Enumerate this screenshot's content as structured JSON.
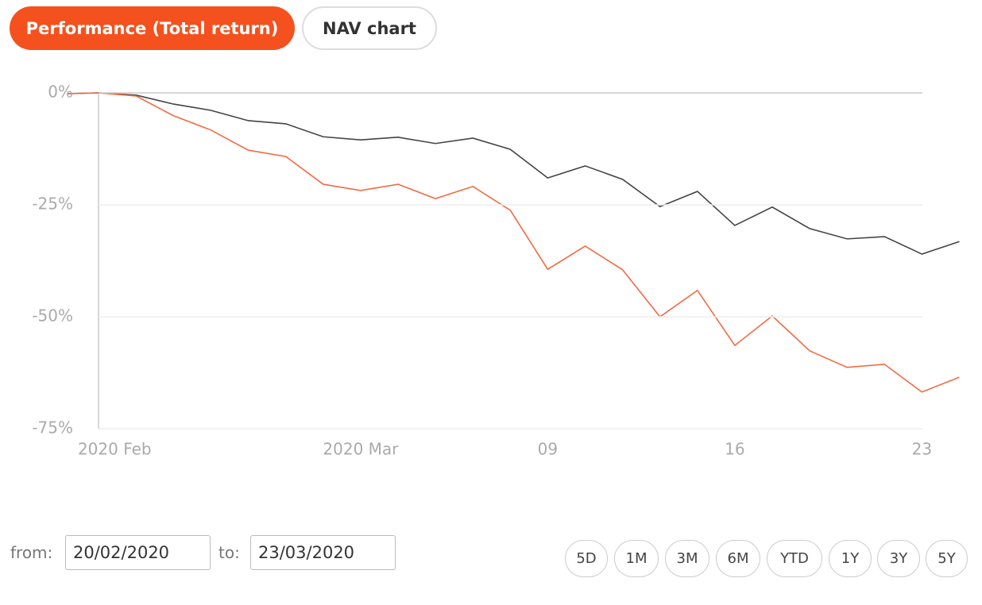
{
  "tabs": [
    "Performance (Total return)",
    "NAV chart"
  ],
  "chart_data": {
    "type": "line",
    "categories": [
      null,
      null,
      "2020 Feb",
      null,
      null,
      null,
      null,
      null,
      "2020 Mar",
      null,
      null,
      null,
      null,
      "09",
      null,
      null,
      null,
      null,
      "16",
      null,
      null,
      null,
      null,
      "23",
      null
    ],
    "series": [
      {
        "color": "#444444",
        "values": [
          -0.2,
          0,
          -0.5,
          -2.5,
          -3.9,
          -6.2,
          -6.9,
          -9.8,
          -10.5,
          -9.9,
          -11.3,
          -10.1,
          -12.6,
          -19.0,
          -16.3,
          -19.3,
          -25.4,
          -22.0,
          -29.6,
          -25.5,
          -30.3,
          -32.6,
          -32.1,
          -36.0,
          -33.2
        ]
      },
      {
        "color": "#f26b43",
        "values": [
          -0.2,
          0,
          -0.7,
          -5.1,
          -8.3,
          -12.8,
          -14.2,
          -20.4,
          -21.8,
          -20.4,
          -23.6,
          -20.9,
          -26.2,
          -39.4,
          -34.2,
          -39.5,
          -50.0,
          -44.1,
          -56.4,
          -49.8,
          -57.6,
          -61.3,
          -60.6,
          -66.8,
          -63.5
        ]
      }
    ],
    "ylim": [
      -75,
      0
    ],
    "yticks": [
      {
        "value": 0,
        "label": "0%"
      },
      {
        "value": -25,
        "label": "-25%"
      },
      {
        "value": -50,
        "label": "-50%"
      },
      {
        "value": -75,
        "label": "-75%"
      }
    ],
    "grid": true
  },
  "date_range": {
    "from_label": "from:",
    "from": "20/02/2020",
    "to_label": "to:",
    "to": "23/03/2020"
  },
  "periods": [
    "5D",
    "1M",
    "3M",
    "6M",
    "YTD",
    "1Y",
    "3Y",
    "5Y"
  ]
}
